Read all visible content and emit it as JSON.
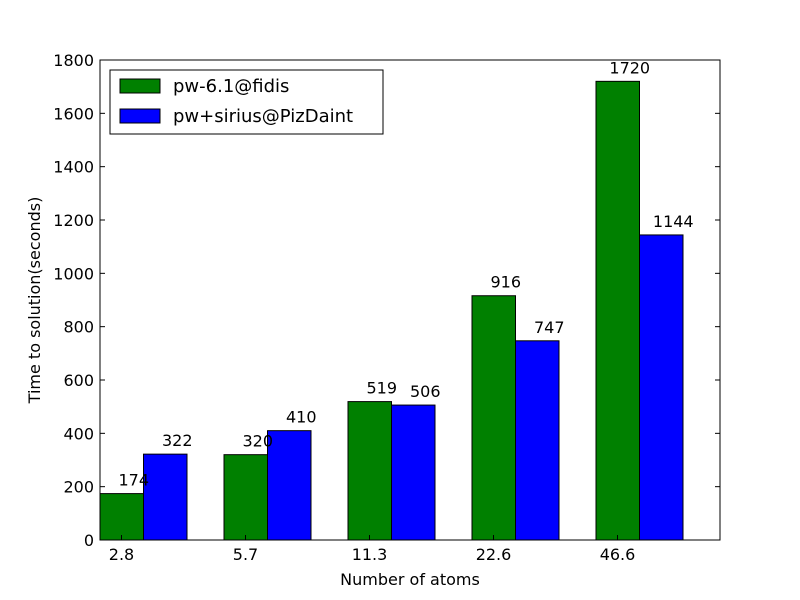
{
  "chart_data": {
    "type": "bar",
    "categories": [
      "2.8",
      "5.7",
      "11.3",
      "22.6",
      "46.6"
    ],
    "series": [
      {
        "name": "pw-6.1@fidis",
        "color": "#008000",
        "values": [
          174,
          320,
          519,
          916,
          1720
        ]
      },
      {
        "name": "pw+sirius@PizDaint",
        "color": "#0000ff",
        "values": [
          322,
          410,
          506,
          747,
          1144
        ]
      }
    ],
    "title": "",
    "xlabel": "Number of atoms",
    "ylabel": "Time to solution(seconds)",
    "ylim": [
      0,
      1800
    ],
    "yticks": [
      0,
      200,
      400,
      600,
      800,
      1000,
      1200,
      1400,
      1600,
      1800
    ],
    "grid": false,
    "legend_position": "top-left",
    "data_labels": true
  }
}
